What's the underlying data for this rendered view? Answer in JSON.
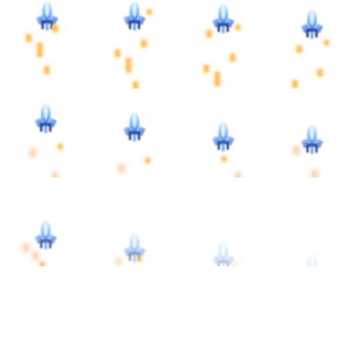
{
  "sprite_sheet": {
    "columns": 4,
    "rows": 4,
    "frame_count": 12,
    "frames": [
      {
        "opacity": 1.0,
        "ship": [
          48,
          2
        ],
        "sparks": [
          [
            38,
            50,
            "n"
          ],
          [
            54,
            62,
            "t"
          ],
          [
            64,
            96,
            "n"
          ],
          [
            76,
            36,
            "n"
          ]
        ]
      },
      {
        "opacity": 1.0,
        "ship": [
          174,
          2
        ],
        "sparks": [
          [
            166,
            72,
            "n"
          ],
          [
            182,
            84,
            "t"
          ],
          [
            204,
            58,
            "n"
          ],
          [
            192,
            118,
            "n"
          ],
          [
            212,
            14,
            "s"
          ]
        ]
      },
      {
        "opacity": 1.0,
        "ship": [
          302,
          6
        ],
        "sparks": [
          [
            298,
            44,
            "n"
          ],
          [
            294,
            94,
            "n"
          ],
          [
            310,
            104,
            "t"
          ],
          [
            332,
            78,
            "n"
          ],
          [
            340,
            36,
            "s"
          ]
        ]
      },
      {
        "opacity": 1.0,
        "ship": [
          430,
          14
        ],
        "sparks": [
          [
            428,
            66,
            "n"
          ],
          [
            458,
            100,
            "n"
          ],
          [
            422,
            116,
            "n"
          ],
          [
            468,
            58,
            "s"
          ]
        ]
      },
      {
        "opacity": 1.0,
        "ship": [
          46,
          150
        ],
        "sparks": [
          [
            44,
            216,
            "p"
          ],
          [
            84,
            208,
            "s"
          ],
          [
            76,
            250,
            "p"
          ]
        ]
      },
      {
        "opacity": 1.0,
        "ship": [
          174,
          162
        ],
        "sparks": [
          [
            172,
            238,
            "p"
          ],
          [
            210,
            228,
            "s"
          ]
        ]
      },
      {
        "opacity": 0.95,
        "ship": [
          302,
          176
        ],
        "sparks": [
          [
            320,
            226,
            "s"
          ],
          [
            340,
            250,
            "p"
          ]
        ]
      },
      {
        "opacity": 0.95,
        "ship": [
          430,
          180
        ],
        "sparks": [
          [
            424,
            212,
            "p"
          ],
          [
            450,
            246,
            "p"
          ]
        ]
      },
      {
        "opacity": 0.85,
        "ship": [
          46,
          318
        ],
        "sparks": [
          [
            34,
            352,
            "p"
          ],
          [
            48,
            364,
            "p"
          ],
          [
            58,
            378,
            "s"
          ]
        ]
      },
      {
        "opacity": 0.55,
        "ship": [
          174,
          336
        ],
        "sparks": [
          [
            168,
            372,
            "p"
          ],
          [
            198,
            370,
            "s"
          ]
        ]
      },
      {
        "opacity": 0.3,
        "ship": [
          302,
          348
        ],
        "sparks": [
          [
            336,
            378,
            "p"
          ]
        ]
      },
      {
        "opacity": 0.18,
        "ship": [
          430,
          364
        ],
        "sparks": []
      }
    ]
  }
}
